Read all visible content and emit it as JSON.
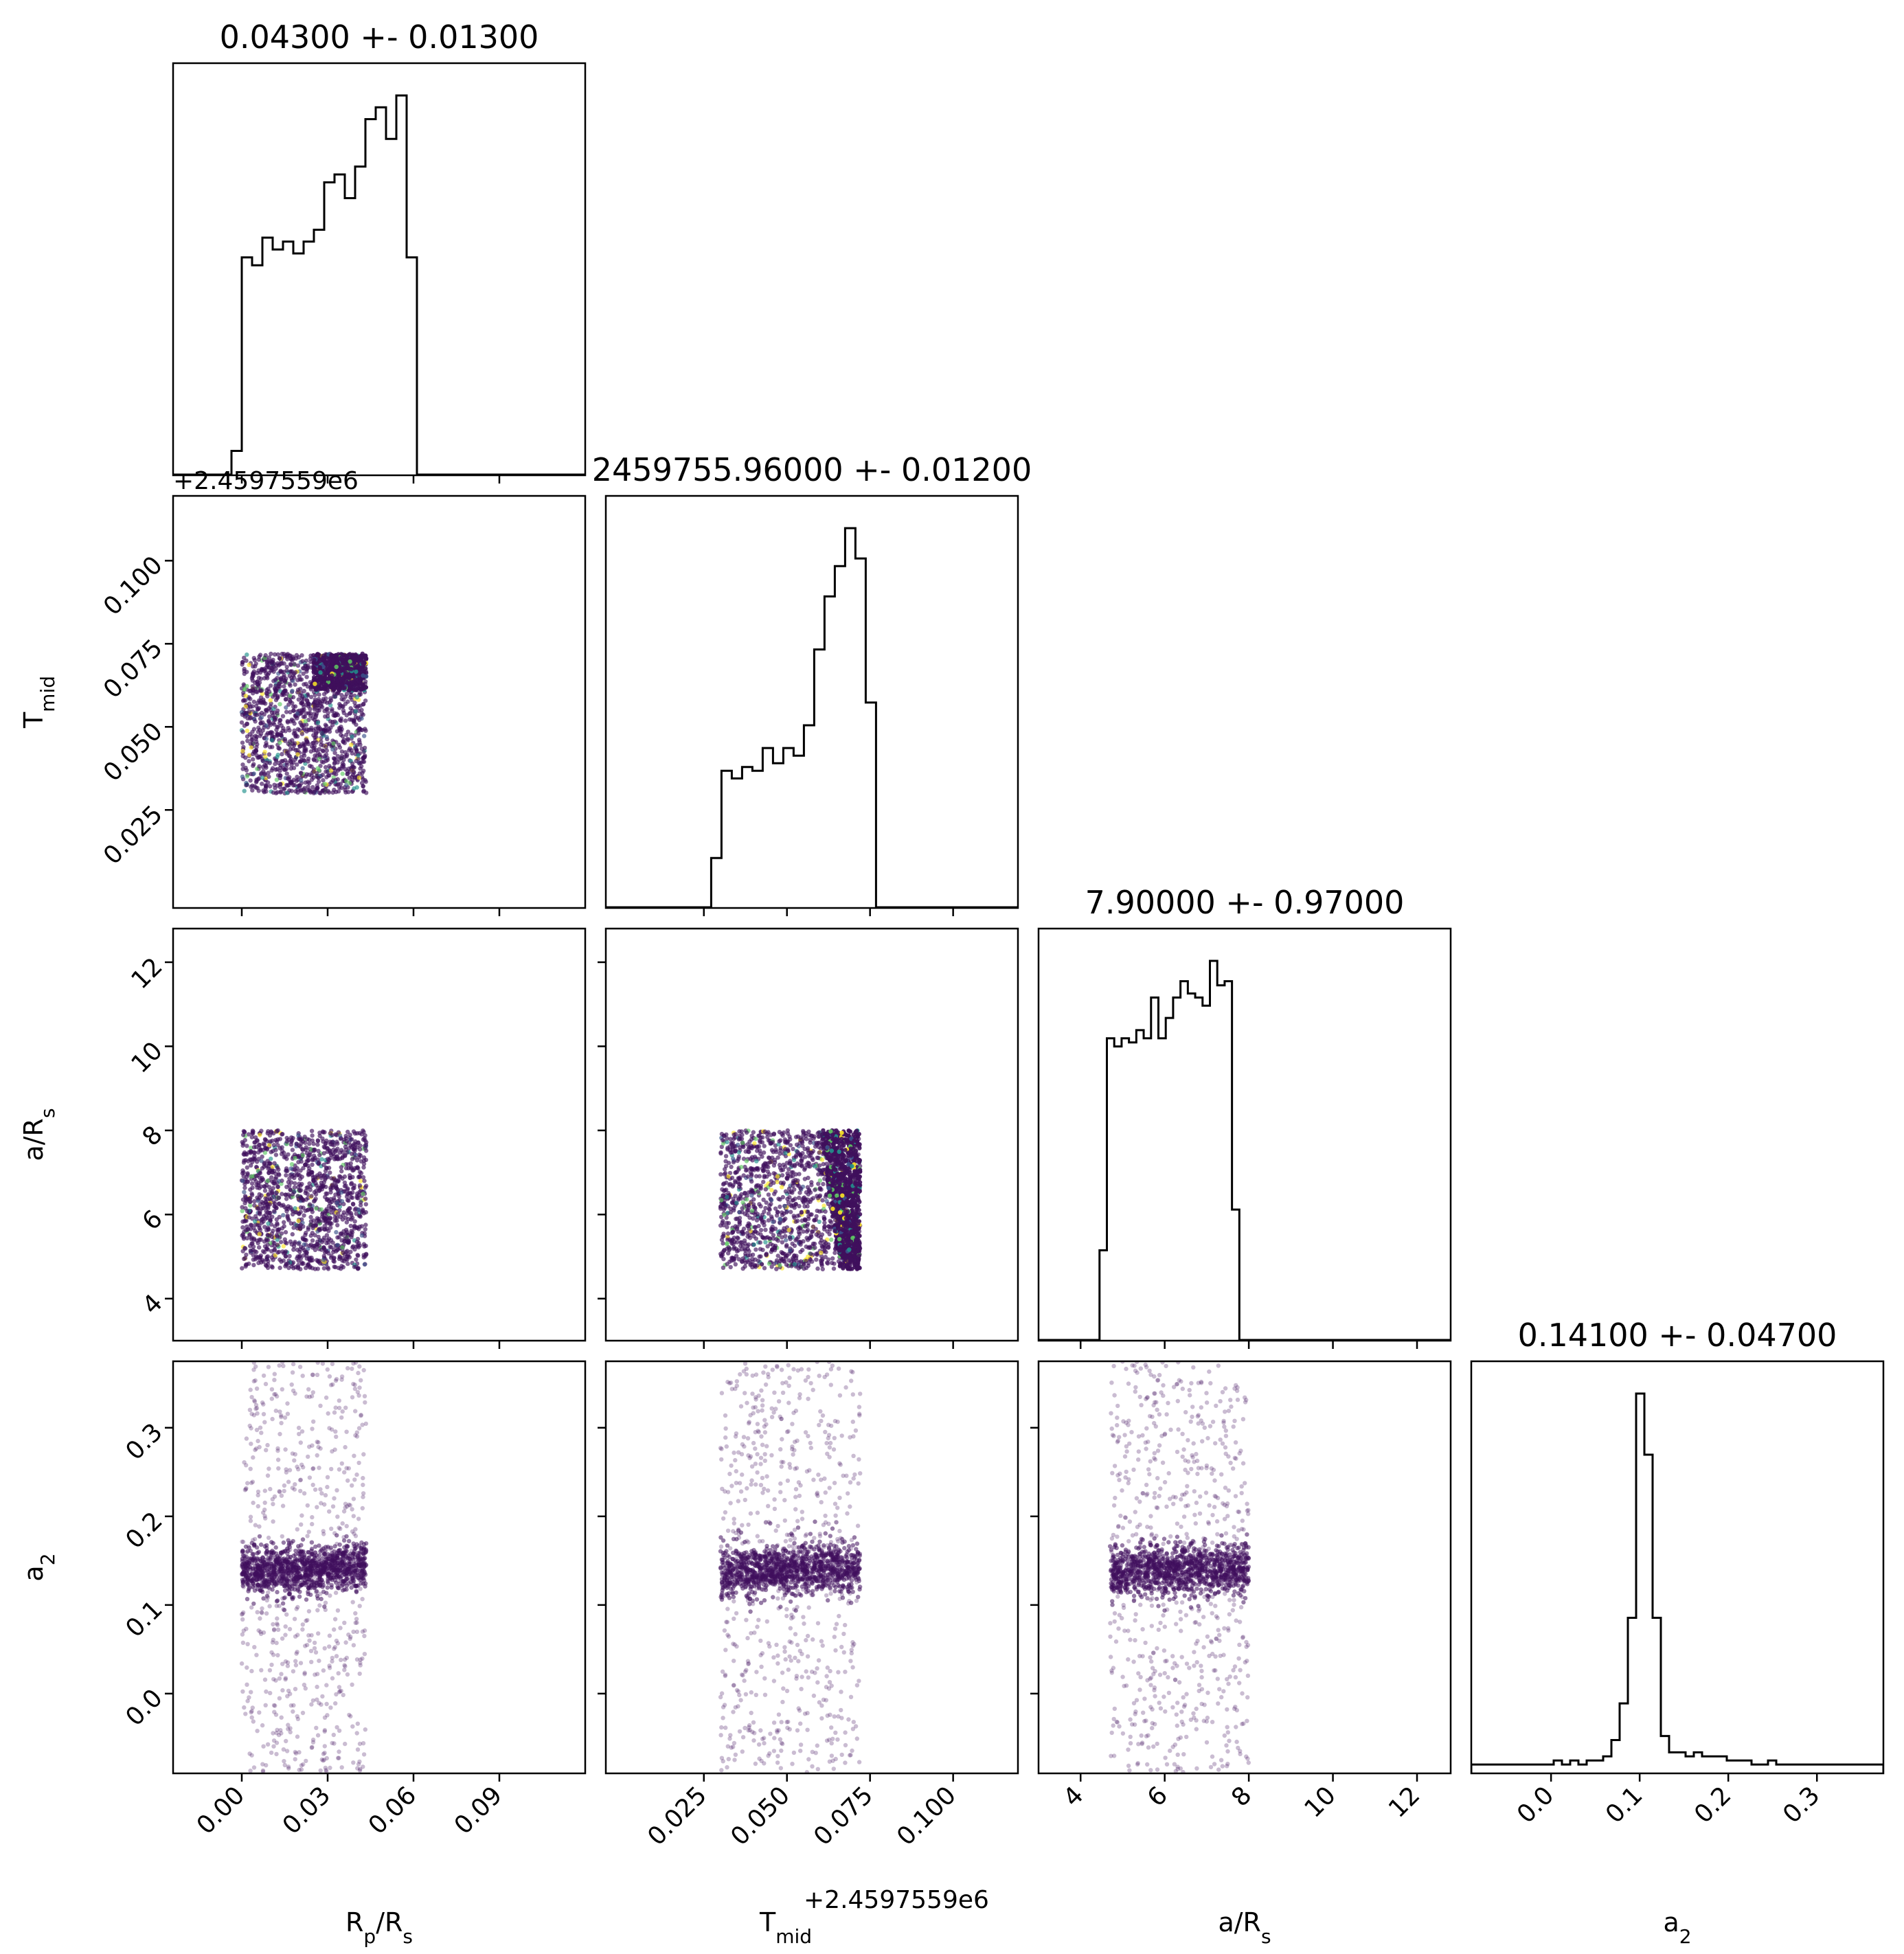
{
  "chart_data": {
    "type": "scatter",
    "subtype": "corner-plot",
    "parameters": [
      {
        "key": "rprs",
        "label": "R",
        "label_sub": "p",
        "label_tail": "/R",
        "label_tail_sub": "s",
        "title": "0.04300 +- 0.01300",
        "range": [
          -0.024,
          0.12
        ],
        "ticks": [
          0.0,
          0.03,
          0.06,
          0.09
        ],
        "tick_labels": [
          "0.00",
          "0.03",
          "0.06",
          "0.09"
        ],
        "sample_range": [
          0.0,
          0.0435
        ]
      },
      {
        "key": "tmid",
        "label": "T",
        "label_sub": "mid",
        "label_tail": "",
        "label_tail_sub": "",
        "title": "2459755.96000 +- 0.01200",
        "offset_label": "+2.4597559e6",
        "range": [
          -0.0045,
          0.1195
        ],
        "ticks": [
          0.025,
          0.05,
          0.075,
          0.1
        ],
        "tick_labels": [
          "0.025",
          "0.050",
          "0.075",
          "0.100"
        ],
        "sample_range": [
          0.03,
          0.072
        ]
      },
      {
        "key": "ars",
        "label": "a/R",
        "label_sub": "s",
        "label_tail": "",
        "label_tail_sub": "",
        "title": "7.90000 +- 0.97000",
        "range": [
          3.0,
          12.8
        ],
        "ticks": [
          4,
          6,
          8,
          10,
          12
        ],
        "tick_labels": [
          "4",
          "6",
          "8",
          "10",
          "12"
        ],
        "sample_range": [
          4.7,
          8.0
        ]
      },
      {
        "key": "a2",
        "label": "a",
        "label_sub": "2",
        "label_tail": "",
        "label_tail_sub": "",
        "title": "0.14100 +- 0.04700",
        "range": [
          -0.09,
          0.375
        ],
        "ticks": [
          0.0,
          0.1,
          0.2,
          0.3
        ],
        "tick_labels": [
          "0.0",
          "0.1",
          "0.2",
          "0.3"
        ],
        "sample_range": [
          -0.09,
          0.375
        ]
      }
    ],
    "histograms": [
      {
        "param": "rprs",
        "bin_start": -0.0036,
        "bin_width": 0.0036,
        "counts": [
          0.06,
          0.55,
          0.53,
          0.6,
          0.57,
          0.59,
          0.56,
          0.59,
          0.62,
          0.74,
          0.76,
          0.7,
          0.78,
          0.9,
          0.93,
          0.85,
          0.96,
          0.55,
          0,
          0,
          0,
          0,
          0,
          0,
          0,
          0,
          0,
          0,
          0,
          0,
          0,
          0,
          0,
          0,
          0,
          0,
          0,
          0,
          0,
          0
        ]
      },
      {
        "param": "tmid",
        "bin_start": 0.0272,
        "bin_width": 0.0031,
        "counts": [
          0.13,
          0.36,
          0.34,
          0.37,
          0.36,
          0.42,
          0.38,
          0.42,
          0.4,
          0.48,
          0.68,
          0.82,
          0.9,
          1.0,
          0.92,
          0.54,
          0
        ]
      },
      {
        "param": "ars",
        "bin_start": 4.45,
        "bin_width": 0.175,
        "counts": [
          0.22,
          0.74,
          0.72,
          0.74,
          0.73,
          0.76,
          0.74,
          0.84,
          0.74,
          0.79,
          0.84,
          0.88,
          0.85,
          0.84,
          0.82,
          0.93,
          0.87,
          0.88,
          0.32,
          0
        ]
      },
      {
        "param": "a2",
        "bin_start": -0.09,
        "bin_width": 0.0093,
        "counts": [
          0.02,
          0.02,
          0.02,
          0.02,
          0.02,
          0.02,
          0.02,
          0.02,
          0.02,
          0.02,
          0.03,
          0.02,
          0.03,
          0.02,
          0.03,
          0.03,
          0.04,
          0.08,
          0.17,
          0.38,
          0.93,
          0.78,
          0.38,
          0.09,
          0.05,
          0.05,
          0.04,
          0.05,
          0.04,
          0.04,
          0.04,
          0.03,
          0.03,
          0.03,
          0.02,
          0.02,
          0.03,
          0.02,
          0.02,
          0.02,
          0.02,
          0.02,
          0.02,
          0.02,
          0.02,
          0.02,
          0.02,
          0.02,
          0.02,
          0.02
        ]
      }
    ],
    "scatter_panels": [
      {
        "x": "rprs",
        "y": "tmid",
        "pattern": "uniform-with-dense-corner",
        "dense_x_min": 0.025,
        "dense_y_min": 0.061
      },
      {
        "x": "rprs",
        "y": "ars",
        "pattern": "uniform"
      },
      {
        "x": "tmid",
        "y": "ars",
        "pattern": "uniform-with-dense-slant",
        "dense_x_min_top": 0.06,
        "dense_x_min_bottom": 0.066
      },
      {
        "x": "rprs",
        "y": "a2",
        "pattern": "narrow-band",
        "band_center": 0.137,
        "band_width": 0.028
      },
      {
        "x": "tmid",
        "y": "a2",
        "pattern": "narrow-band",
        "band_center": 0.137,
        "band_width": 0.028
      },
      {
        "x": "ars",
        "y": "a2",
        "pattern": "narrow-band",
        "band_center": 0.137,
        "band_width": 0.028
      }
    ],
    "point_color": "#3f0f5c",
    "colormap": "viridis",
    "histogram_color": "#000000",
    "grid": false,
    "legend": "none"
  }
}
